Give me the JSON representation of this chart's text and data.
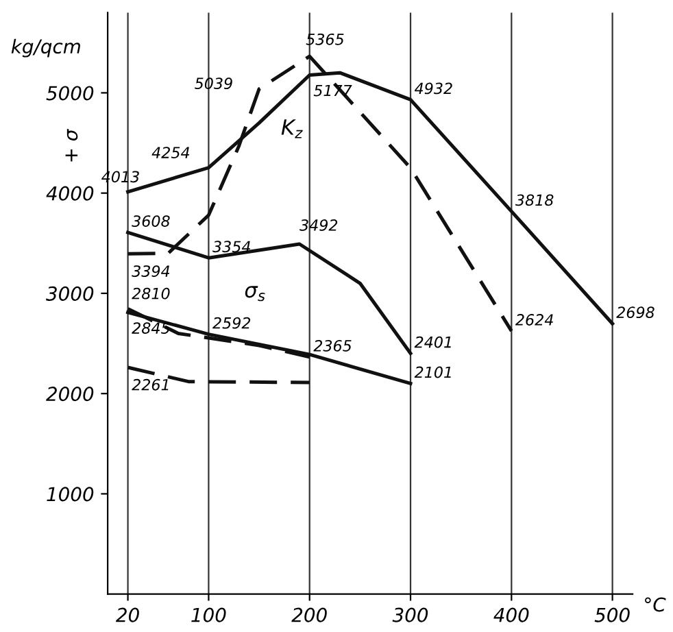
{
  "chart_data": {
    "type": "line",
    "ylabel": "+ σ",
    "xlabel": "°C",
    "xlim": [
      0,
      520
    ],
    "ylim": [
      0,
      5800
    ],
    "xticks": [
      20,
      100,
      200,
      300,
      400,
      500
    ],
    "yticks": [
      1000,
      2000,
      3000,
      4000,
      5000
    ],
    "grid": "x",
    "marker": "none",
    "series": [
      {
        "color": "#111111",
        "line_style": "solid",
        "x": [
          20,
          100,
          150,
          200,
          230,
          300,
          400,
          500
        ],
        "values": [
          4013,
          4254,
          4700,
          5177,
          5200,
          4932,
          3818,
          2698
        ],
        "value_labels": [
          "4013",
          "4254",
          null,
          "5177",
          null,
          "4932",
          "3818",
          "2698"
        ]
      },
      {
        "color": "#111111",
        "line_style": "dashed",
        "x": [
          20,
          60,
          100,
          130,
          150,
          200,
          300,
          400
        ],
        "values": [
          3394,
          3400,
          3780,
          4470,
          5039,
          5365,
          4250,
          2624
        ],
        "value_labels": [
          "3394",
          null,
          null,
          null,
          "5039",
          "5365",
          null,
          "2624"
        ]
      },
      {
        "color": "#111111",
        "line_style": "solid",
        "x": [
          20,
          100,
          190,
          250,
          300
        ],
        "values": [
          3608,
          3354,
          3492,
          3100,
          2401
        ],
        "value_labels": [
          "3608",
          "3354",
          "3492",
          null,
          "2401"
        ]
      },
      {
        "color": "#111111",
        "line_style": "solid",
        "x": [
          20,
          100,
          200,
          300
        ],
        "values": [
          2810,
          2592,
          2390,
          2101
        ],
        "value_labels": [
          "2810",
          "2592",
          null,
          "2101"
        ]
      },
      {
        "color": "#111111",
        "line_style": "dashed",
        "x": [
          20,
          70,
          150,
          200
        ],
        "values": [
          2845,
          2600,
          2480,
          2365
        ],
        "value_labels": [
          "2845",
          null,
          null,
          "2365"
        ]
      },
      {
        "color": "#111111",
        "line_style": "dashed",
        "x": [
          20,
          80,
          200
        ],
        "values": [
          2261,
          2120,
          2110
        ],
        "value_labels": [
          "2261",
          null,
          null
        ]
      }
    ],
    "annotations": [
      "kg/qcm",
      "K$_{z}$",
      "σ$_{s}$"
    ]
  }
}
